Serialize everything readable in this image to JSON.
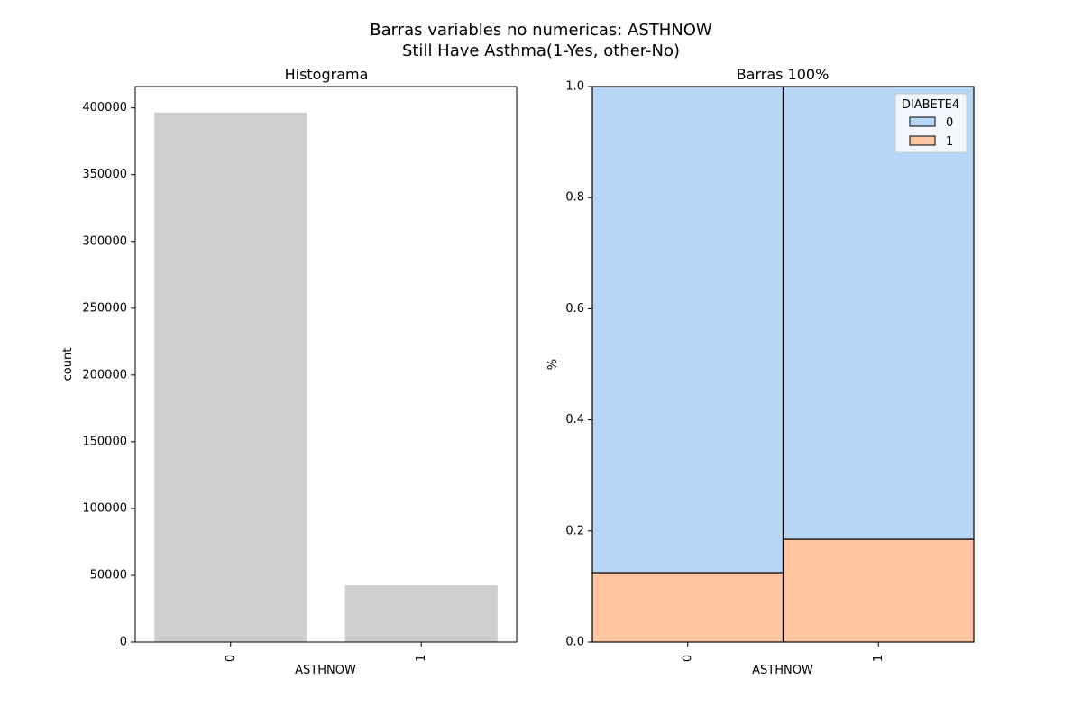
{
  "figure": {
    "title_line1": "Barras variables no numericas: ASTHNOW",
    "title_line2": "Still Have Asthma(1-Yes, other-No)"
  },
  "chart_data": [
    {
      "type": "bar",
      "title": "Histograma",
      "xlabel": "ASTHNOW",
      "ylabel": "count",
      "categories": [
        "0",
        "1"
      ],
      "values": [
        396500,
        42500
      ],
      "ylim": [
        0,
        416000
      ],
      "yticks": [
        0,
        50000,
        100000,
        150000,
        200000,
        250000,
        300000,
        350000,
        400000
      ],
      "bar_color": "#cfcfcf",
      "grid": false
    },
    {
      "type": "bar",
      "stacked": true,
      "title": "Barras 100%",
      "xlabel": "ASTHNOW",
      "ylabel": "%",
      "categories": [
        "0",
        "1"
      ],
      "series": [
        {
          "name": "1",
          "values": [
            0.125,
            0.185
          ],
          "color": "#ffc5a1"
        },
        {
          "name": "0",
          "values": [
            0.875,
            0.815
          ],
          "color": "#b8d6f5"
        }
      ],
      "ylim": [
        0,
        1
      ],
      "yticks": [
        "0.0",
        "0.2",
        "0.4",
        "0.6",
        "0.8",
        "1.0"
      ],
      "legend": {
        "title": "DIABETE4",
        "placement": "top-right",
        "entries": [
          "0",
          "1"
        ]
      },
      "grid": false
    }
  ]
}
